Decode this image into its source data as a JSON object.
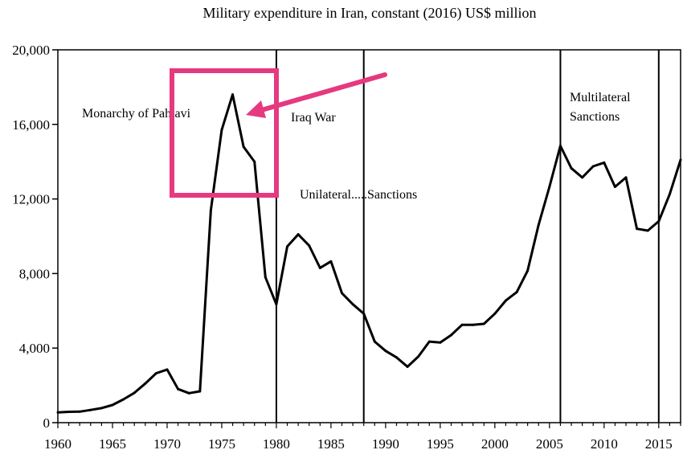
{
  "chart_data": {
    "type": "line",
    "title": "Military expenditure in Iran,  constant (2016) US$ million",
    "xlabel": "",
    "ylabel": "",
    "xlim": [
      1960,
      2017
    ],
    "ylim": [
      0,
      20000
    ],
    "x_ticks": [
      1960,
      1965,
      1970,
      1975,
      1980,
      1985,
      1990,
      1995,
      2000,
      2005,
      2010,
      2015
    ],
    "x_tick_labels": [
      "1960",
      "1965",
      "1970",
      "1975",
      "1980",
      "1985",
      "1990",
      "1995",
      "2000",
      "2005",
      "2010",
      "2015"
    ],
    "y_ticks": [
      0,
      4000,
      8000,
      12000,
      16000,
      20000
    ],
    "y_tick_labels": [
      "0",
      "4,000",
      "8,000",
      "12,000",
      "16,000",
      "20,000"
    ],
    "grid": false,
    "series": [
      {
        "name": "Military expenditure",
        "color": "#000000",
        "x": [
          1960,
          1961,
          1962,
          1963,
          1964,
          1965,
          1966,
          1967,
          1968,
          1969,
          1970,
          1971,
          1972,
          1973,
          1974,
          1975,
          1976,
          1977,
          1978,
          1979,
          1980,
          1981,
          1982,
          1983,
          1984,
          1985,
          1986,
          1987,
          1988,
          1989,
          1990,
          1991,
          1992,
          1993,
          1994,
          1995,
          1996,
          1997,
          1998,
          1999,
          2000,
          2001,
          2002,
          2003,
          2004,
          2005,
          2006,
          2007,
          2008,
          2009,
          2010,
          2011,
          2012,
          2013,
          2014,
          2015,
          2016,
          2017
        ],
        "values": [
          550,
          580,
          590,
          680,
          780,
          950,
          1250,
          1600,
          2100,
          2650,
          2850,
          1800,
          1580,
          1680,
          11400,
          15700,
          17600,
          14800,
          14000,
          7800,
          6350,
          9450,
          10100,
          9500,
          8300,
          8650,
          6950,
          6350,
          5850,
          4350,
          3850,
          3500,
          3000,
          3550,
          4350,
          4300,
          4700,
          5250,
          5250,
          5300,
          5850,
          6550,
          7000,
          8150,
          10600,
          12650,
          14850,
          13650,
          13150,
          13750,
          13950,
          12650,
          13150,
          10400,
          10300,
          10800,
          12250,
          14100
        ]
      }
    ],
    "period_markers": [
      1980,
      1988,
      2006,
      2015
    ],
    "annotations": [
      {
        "text": "Monarchy of Pahlavi",
        "near": "1974"
      },
      {
        "text": "Iraq War",
        "near": "1980-1988"
      },
      {
        "text": "Unilateral.....Sanctions",
        "near": "1988-2006"
      },
      {
        "text": "Multilateral",
        "near": "2006-2015"
      },
      {
        "text": "Sanctions",
        "near": "2006-2015"
      }
    ],
    "highlight_color": "#e6397f"
  }
}
